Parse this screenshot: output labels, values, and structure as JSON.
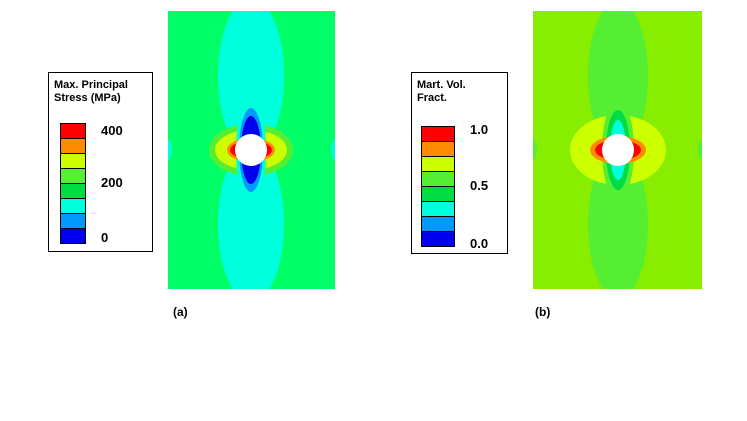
{
  "panels": [
    {
      "caption": "(a)",
      "legend": {
        "title": "Max. Principal\nStress (MPa)",
        "labels": [
          "400",
          "200",
          "0"
        ],
        "colors": [
          "#ff0000",
          "#ff8c00",
          "#ccff00",
          "#55ee33",
          "#00dd44",
          "#00ffdd",
          "#0099ff",
          "#0000ee"
        ]
      },
      "background_color": "#00ff66"
    },
    {
      "caption": "(b)",
      "legend": {
        "title": "Mart. Vol.\nFract.",
        "labels": [
          "1.0",
          "0.5",
          "0.0"
        ],
        "colors": [
          "#ff0000",
          "#ff8c00",
          "#ccff00",
          "#55ee33",
          "#00dd44",
          "#00ffdd",
          "#0099ff",
          "#0000ee"
        ]
      },
      "background_color": "#88ee00"
    }
  ]
}
